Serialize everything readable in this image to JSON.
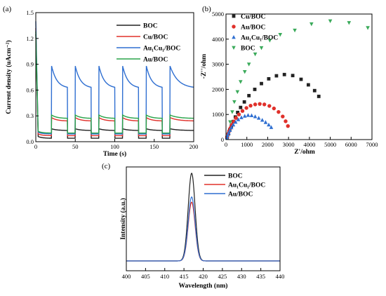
{
  "chart_data": [
    {
      "panel": "(a)",
      "type": "line",
      "xlabel": "Time (s)",
      "ylabel": "Current density (uAcm⁻²)",
      "xlim": [
        0,
        200
      ],
      "ylim": [
        0,
        1.5
      ],
      "xticks": [
        "0",
        "50",
        "100",
        "150",
        "200"
      ],
      "yticks": [
        "0.0",
        "0.3",
        "0.6",
        "0.9",
        "1.2",
        "1.5"
      ],
      "light_on": [
        [
          20,
          40
        ],
        [
          50,
          70
        ],
        [
          80,
          100
        ],
        [
          110,
          130
        ],
        [
          140,
          160
        ],
        [
          170,
          200
        ]
      ],
      "series": [
        {
          "name": "BOC",
          "color": "#222222",
          "base": 0.04,
          "on_start": 0.15,
          "on_end": 0.13,
          "peak0": 1.25
        },
        {
          "name": "Cu/BOC",
          "color": "#e0302a",
          "base": 0.07,
          "on_start": 0.28,
          "on_end": 0.24,
          "peak0": 1.32
        },
        {
          "name": "Au₁Cu₁/BOC",
          "color": "#2f6fd1",
          "base": 0.09,
          "on_start": 0.88,
          "on_end": 0.62,
          "peak0": 1.4
        },
        {
          "name": "Au/BOC",
          "color": "#2aa34a",
          "base": 0.1,
          "on_start": 0.31,
          "on_end": 0.27,
          "peak0": 1.28
        }
      ]
    },
    {
      "panel": "(b)",
      "type": "scatter",
      "xlabel": "Z'/ohm",
      "ylabel": "-Z''/ohm",
      "xlim": [
        0,
        7000
      ],
      "ylim": [
        0,
        5000
      ],
      "xticks": [
        "0",
        "1000",
        "2000",
        "3000",
        "4000",
        "5000",
        "6000",
        "7000"
      ],
      "yticks": [
        "0",
        "1000",
        "2000",
        "3000",
        "4000",
        "5000"
      ],
      "series": [
        {
          "name": "Cu/BOC",
          "color": "#222222",
          "marker": "square",
          "x": [
            60,
            120,
            180,
            260,
            350,
            450,
            560,
            700,
            880,
            1100,
            1380,
            1700,
            2050,
            2420,
            2800,
            3200,
            3600,
            3950,
            4250,
            4450
          ],
          "y": [
            100,
            230,
            380,
            540,
            720,
            900,
            1080,
            1280,
            1500,
            1750,
            2000,
            2230,
            2420,
            2540,
            2590,
            2550,
            2400,
            2180,
            1950,
            1720
          ]
        },
        {
          "name": "Au/BOC",
          "color": "#e0302a",
          "marker": "circle",
          "x": [
            50,
            100,
            150,
            210,
            280,
            370,
            480,
            620,
            790,
            980,
            1180,
            1400,
            1620,
            1840,
            2080,
            2300,
            2520,
            2720,
            2860,
            2970
          ],
          "y": [
            100,
            220,
            340,
            460,
            590,
            720,
            860,
            1000,
            1140,
            1260,
            1350,
            1400,
            1420,
            1400,
            1340,
            1240,
            1100,
            920,
            730,
            540
          ]
        },
        {
          "name": "Au₁Cu₁/BOC",
          "color": "#2f6fd1",
          "marker": "triangle-up",
          "x": [
            40,
            80,
            130,
            190,
            260,
            350,
            460,
            590,
            740,
            900,
            1060,
            1230,
            1400,
            1570,
            1740,
            1900,
            2050,
            2170
          ],
          "y": [
            80,
            170,
            270,
            370,
            480,
            590,
            700,
            800,
            880,
            940,
            970,
            960,
            920,
            860,
            780,
            690,
            590,
            490
          ]
        },
        {
          "name": "BOC",
          "color": "#3aaa5a",
          "marker": "triangle-down",
          "x": [
            200,
            300,
            400,
            550,
            700,
            900,
            1100,
            1400,
            1700,
            2100,
            2600,
            3300,
            4100,
            5000,
            5900,
            6800
          ],
          "y": [
            700,
            1100,
            1500,
            1900,
            2300,
            2700,
            3000,
            3400,
            3650,
            3950,
            4180,
            4350,
            4600,
            4720,
            4650,
            4450
          ]
        }
      ]
    },
    {
      "panel": "(c)",
      "type": "line",
      "xlabel": "Wavelength (nm)",
      "ylabel": "Intensity (a.u.)",
      "xlim": [
        400,
        440
      ],
      "xticks": [
        "400",
        "405",
        "410",
        "415",
        "420",
        "425",
        "430",
        "435",
        "440"
      ],
      "peak_center": 417,
      "series": [
        {
          "name": "BOC",
          "color": "#222222",
          "peak": 1.0
        },
        {
          "name": "Au₁Cu₁/BOC",
          "color": "#e0302a",
          "peak": 0.67
        },
        {
          "name": "Au/BOC",
          "color": "#2f6fd1",
          "peak": 0.73
        }
      ]
    }
  ]
}
